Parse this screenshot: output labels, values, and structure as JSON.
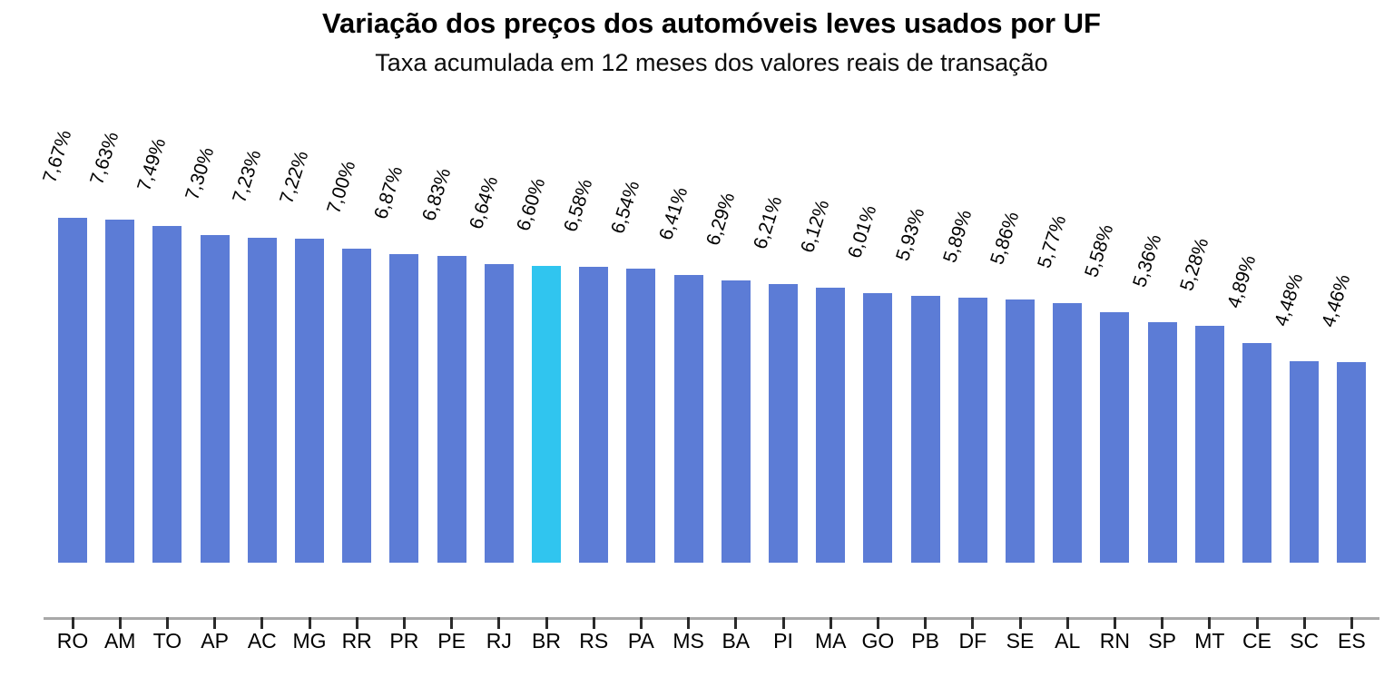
{
  "chart_data": {
    "type": "bar",
    "title": "Variação dos preços dos automóveis leves usados por UF",
    "subtitle": "Taxa acumulada em 12 meses dos valores reais de transação",
    "categories": [
      "RO",
      "AM",
      "TO",
      "AP",
      "AC",
      "MG",
      "RR",
      "PR",
      "PE",
      "RJ",
      "BR",
      "RS",
      "PA",
      "MS",
      "BA",
      "PI",
      "MA",
      "GO",
      "PB",
      "DF",
      "SE",
      "AL",
      "RN",
      "SP",
      "MT",
      "CE",
      "SC",
      "ES"
    ],
    "values": [
      7.67,
      7.63,
      7.49,
      7.3,
      7.23,
      7.22,
      7.0,
      6.87,
      6.83,
      6.64,
      6.6,
      6.58,
      6.54,
      6.41,
      6.29,
      6.21,
      6.12,
      6.01,
      5.93,
      5.89,
      5.86,
      5.77,
      5.58,
      5.36,
      5.28,
      4.89,
      4.48,
      4.46
    ],
    "value_labels": [
      "7,67%",
      "7,63%",
      "7,49%",
      "7,30%",
      "7,23%",
      "7,22%",
      "7,00%",
      "6,87%",
      "6,83%",
      "6,64%",
      "6,60%",
      "6,58%",
      "6,54%",
      "6,41%",
      "6,29%",
      "6,21%",
      "6,12%",
      "6,01%",
      "5,93%",
      "5,89%",
      "5,86%",
      "5,77%",
      "5,58%",
      "5,36%",
      "5,28%",
      "4,89%",
      "4,48%",
      "4,46%"
    ],
    "highlight_category": "BR",
    "xlabel": "",
    "ylabel": "",
    "ylim": [
      0,
      8
    ],
    "grid": false,
    "legend": null,
    "colors": {
      "bar": "#5C7CD6",
      "highlight": "#30C5EF",
      "axis_line": "#A8A8A8",
      "tick": "#2B2B2B",
      "text": "#000000"
    }
  }
}
